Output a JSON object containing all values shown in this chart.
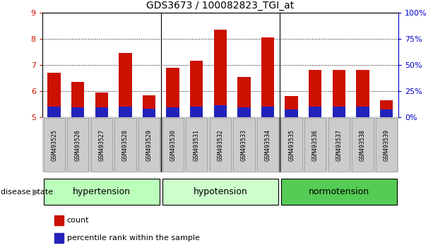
{
  "title": "GDS3673 / 100082823_TGI_at",
  "samples": [
    "GSM493525",
    "GSM493526",
    "GSM493527",
    "GSM493528",
    "GSM493529",
    "GSM493530",
    "GSM493531",
    "GSM493532",
    "GSM493533",
    "GSM493534",
    "GSM493535",
    "GSM493536",
    "GSM493537",
    "GSM493538",
    "GSM493539"
  ],
  "count_values": [
    6.7,
    6.35,
    5.95,
    7.45,
    5.85,
    6.9,
    7.15,
    8.35,
    6.55,
    8.05,
    5.82,
    6.8,
    6.82,
    6.82,
    5.65
  ],
  "percentile_values": [
    5.42,
    5.38,
    5.38,
    5.42,
    5.32,
    5.38,
    5.42,
    5.48,
    5.38,
    5.42,
    5.3,
    5.42,
    5.42,
    5.42,
    5.3
  ],
  "ylim": [
    5,
    9
  ],
  "y2lim": [
    0,
    100
  ],
  "yticks": [
    5,
    6,
    7,
    8,
    9
  ],
  "y2ticks": [
    0,
    25,
    50,
    75,
    100
  ],
  "bar_color": "#cc1100",
  "percentile_color": "#2222bb",
  "bar_width": 0.55,
  "group_spans": [
    {
      "start": 0,
      "end": 4,
      "label": "hypertension",
      "color": "#bbffbb"
    },
    {
      "start": 5,
      "end": 9,
      "label": "hypotension",
      "color": "#ccffcc"
    },
    {
      "start": 10,
      "end": 14,
      "label": "normotension",
      "color": "#55cc55"
    }
  ],
  "tick_label_color": "#cc1100",
  "y2_label_color": "#0000cc",
  "legend_count_label": "count",
  "legend_percentile_label": "percentile rank within the sample",
  "disease_state_label": "disease state",
  "title_fontsize": 10
}
